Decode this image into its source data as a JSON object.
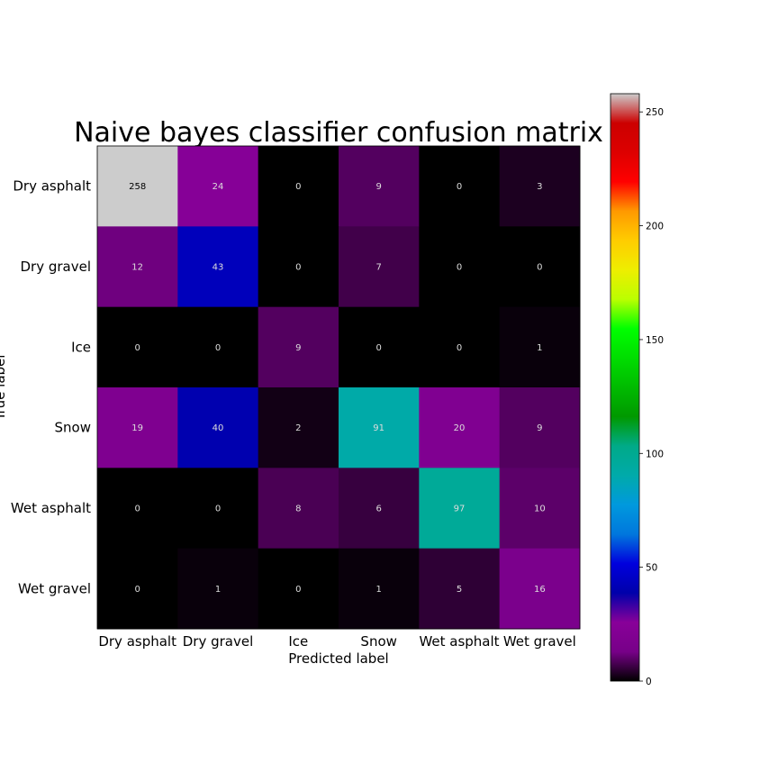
{
  "chart_data": {
    "type": "heatmap",
    "title": "Naive bayes classifier confusion matrix",
    "xlabel": "Predicted label",
    "ylabel": "True label",
    "x_categories": [
      "Dry asphalt",
      "Dry gravel",
      "Ice",
      "Snow",
      "Wet asphalt",
      "Wet gravel"
    ],
    "y_categories": [
      "Dry asphalt",
      "Dry gravel",
      "Ice",
      "Snow",
      "Wet asphalt",
      "Wet gravel"
    ],
    "values": [
      [
        258,
        24,
        0,
        9,
        0,
        3
      ],
      [
        12,
        43,
        0,
        7,
        0,
        0
      ],
      [
        0,
        0,
        9,
        0,
        0,
        1
      ],
      [
        19,
        40,
        2,
        91,
        20,
        9
      ],
      [
        0,
        0,
        8,
        6,
        97,
        10
      ],
      [
        0,
        1,
        0,
        1,
        5,
        16
      ]
    ],
    "colorbar": {
      "colormap": "nipy_spectral",
      "range": [
        0,
        258
      ],
      "ticks": [
        0,
        50,
        100,
        150,
        200,
        250
      ]
    },
    "grid": false
  }
}
